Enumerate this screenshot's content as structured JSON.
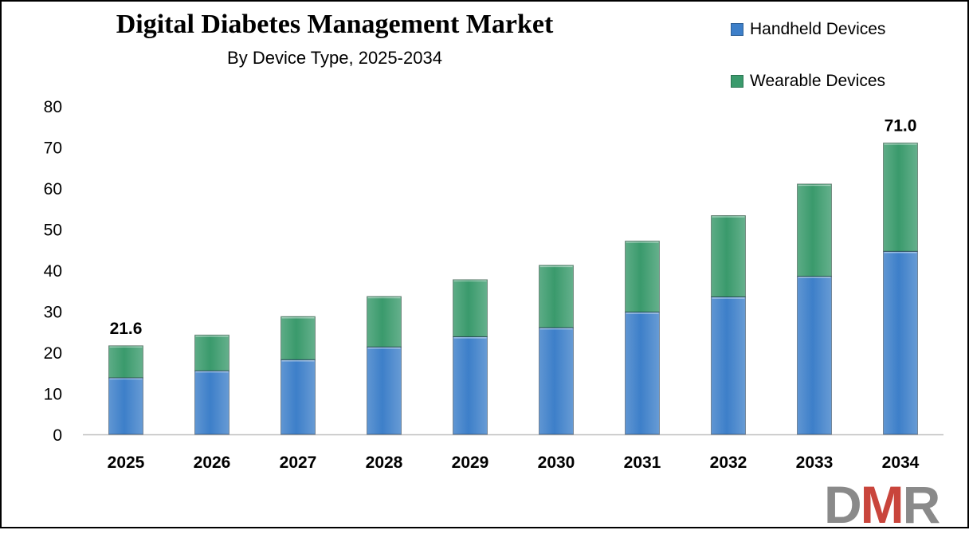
{
  "colors": {
    "handheld": "#3d7fc9",
    "wearable": "#3a9a6c",
    "axis": "#bfbfbf"
  },
  "logo": {
    "letter_1": "D",
    "letter_2": "M",
    "letter_3": "R"
  },
  "chart_data": {
    "type": "bar",
    "stacked": true,
    "title": "Digital Diabetes Management Market",
    "subtitle": "By Device Type, 2025-2034",
    "xlabel": "",
    "ylabel": "",
    "ylim": [
      0,
      80
    ],
    "yticks": [
      0,
      10,
      20,
      30,
      40,
      50,
      60,
      70,
      80
    ],
    "grid": false,
    "legend_position": "top-right",
    "categories": [
      "2025",
      "2026",
      "2027",
      "2028",
      "2029",
      "2030",
      "2031",
      "2032",
      "2033",
      "2034"
    ],
    "series": [
      {
        "name": "Handheld Devices",
        "values": [
          13.8,
          15.5,
          18.2,
          21.3,
          23.8,
          26.0,
          29.8,
          33.5,
          38.5,
          44.6
        ]
      },
      {
        "name": "Wearable Devices",
        "values": [
          7.8,
          8.7,
          10.5,
          12.3,
          13.9,
          15.2,
          17.3,
          19.8,
          22.5,
          26.4
        ]
      }
    ],
    "annotations": [
      {
        "category": "2025",
        "label": "21.6"
      },
      {
        "category": "2034",
        "label": "71.0"
      }
    ]
  }
}
